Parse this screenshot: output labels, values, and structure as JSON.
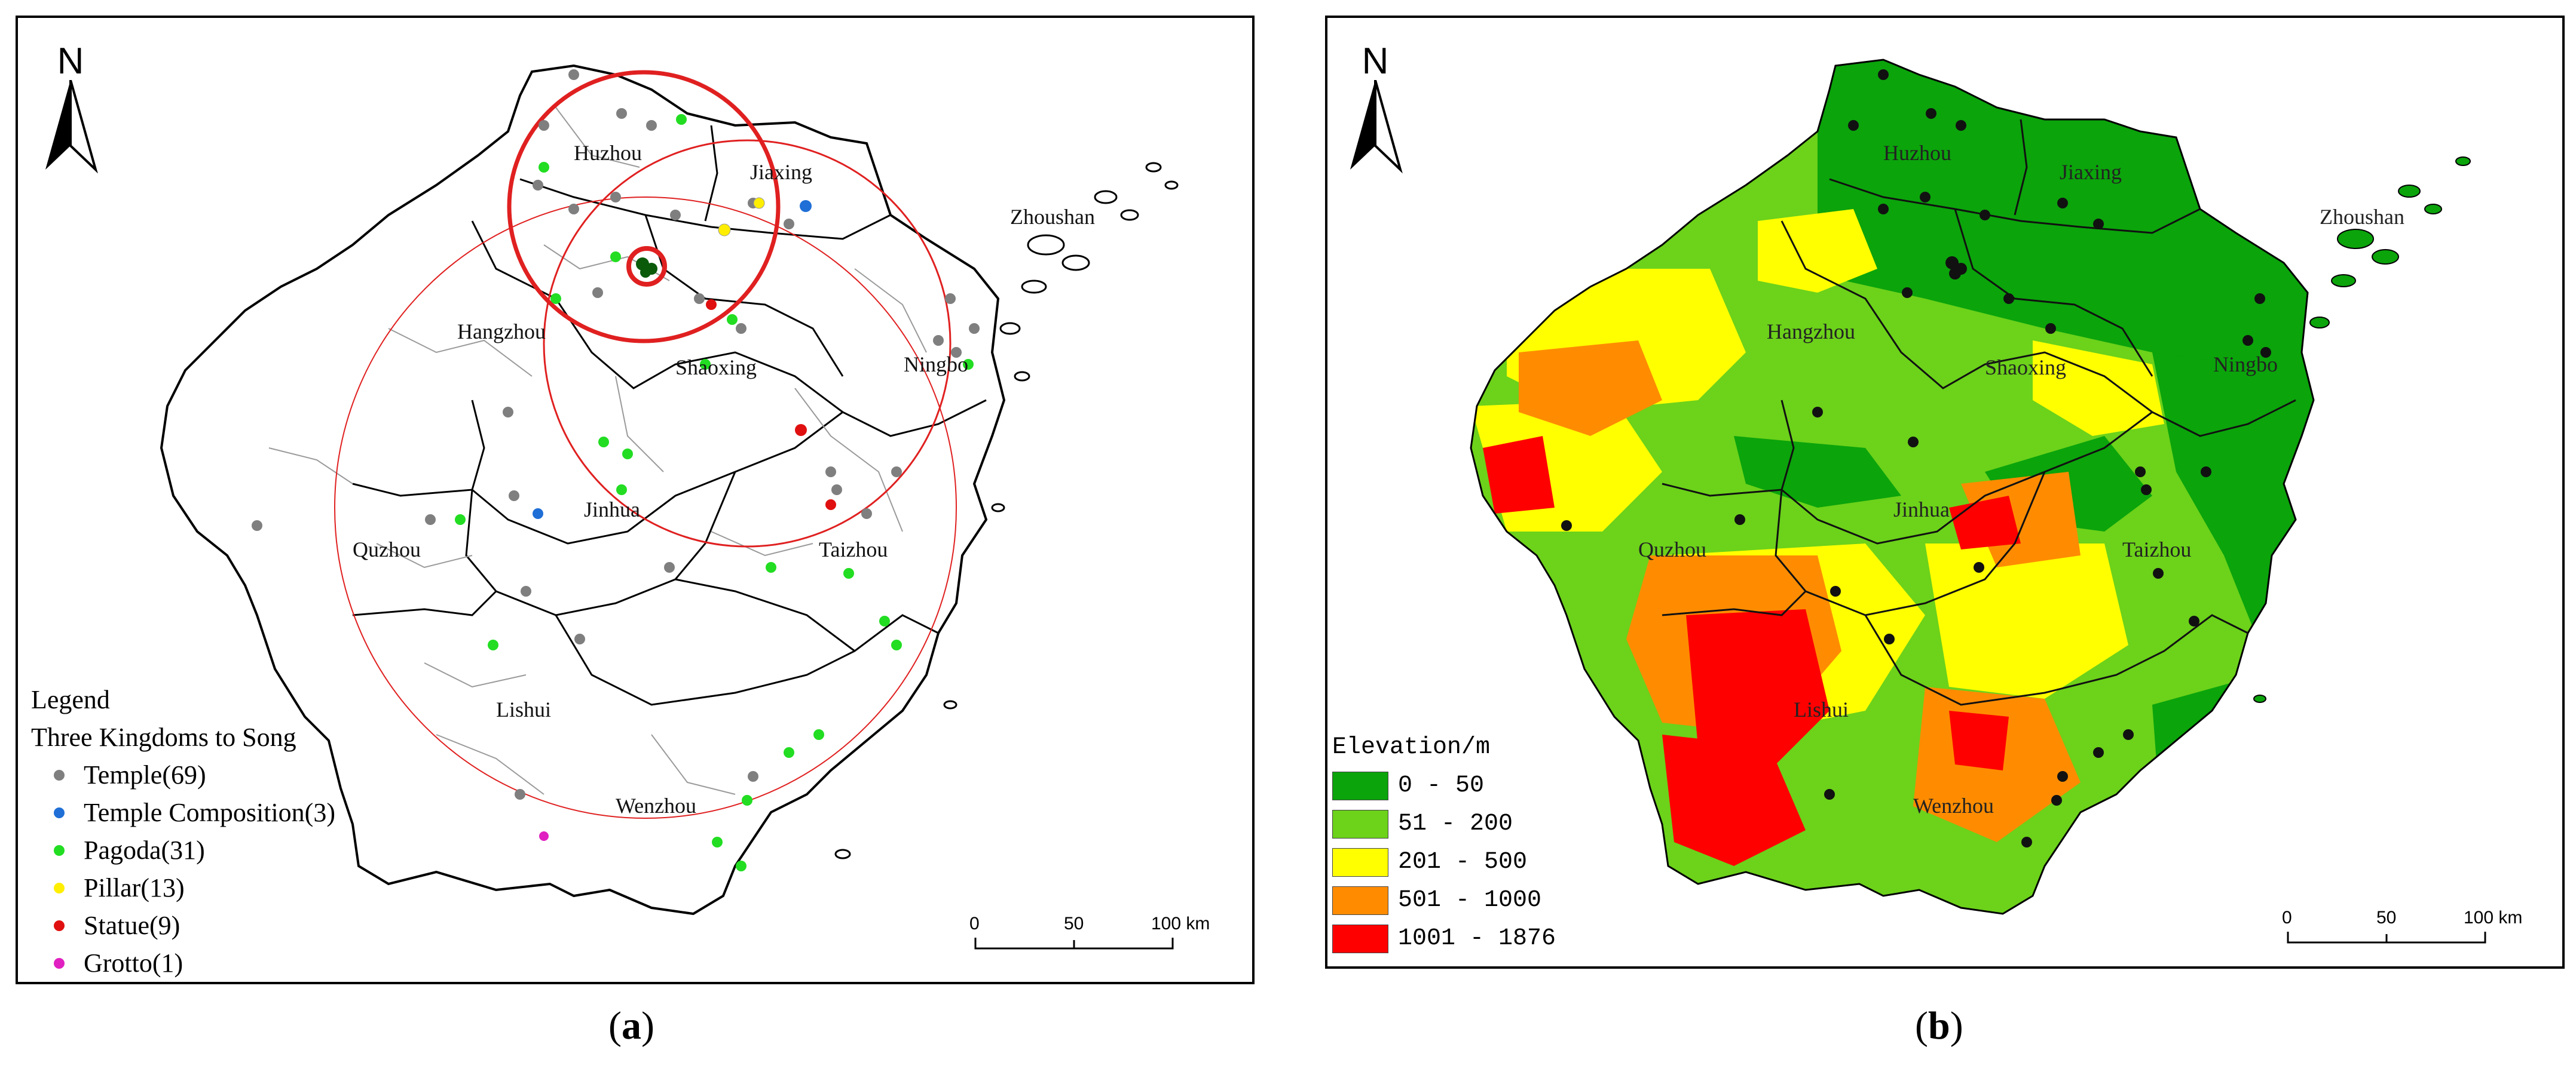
{
  "panel_a": {
    "caption_open": "(",
    "caption_letter": "a",
    "caption_close": ")",
    "north": "N",
    "cities": [
      "Huzhou",
      "Jiaxing",
      "Zhoushan",
      "Hangzhou",
      "Shaoxing",
      "Ningbo",
      "Jinhua",
      "Quzhou",
      "Taizhou",
      "Lishui",
      "Wenzhou"
    ],
    "legend_title": "Legend",
    "legend_subtitle": "Three Kingdoms to Song",
    "legend_items": [
      {
        "label": "Temple(69)",
        "color": "#7f7f7f"
      },
      {
        "label": "Temple Composition(3)",
        "color": "#1f6fd6"
      },
      {
        "label": "Pagoda(31)",
        "color": "#22dd22"
      },
      {
        "label": "Pillar(13)",
        "color": "#ffee00"
      },
      {
        "label": "Statue(9)",
        "color": "#e01010"
      },
      {
        "label": "Grotto(1)",
        "color": "#e020c0"
      }
    ],
    "scale_labels": [
      "0",
      "50",
      "100 km"
    ]
  },
  "panel_b": {
    "caption_open": "(",
    "caption_letter": "b",
    "caption_close": ")",
    "north": "N",
    "cities": [
      "Huzhou",
      "Jiaxing",
      "Zhoushan",
      "Hangzhou",
      "Shaoxing",
      "Ningbo",
      "Jinhua",
      "Quzhou",
      "Taizhou",
      "Lishui",
      "Wenzhou"
    ],
    "legend_title": "Elevation/m",
    "legend_items": [
      {
        "label": "0 - 50",
        "color": "#0ba40b"
      },
      {
        "label": "51 - 200",
        "color": "#6cd21a"
      },
      {
        "label": "201 - 500",
        "color": "#ffff00"
      },
      {
        "label": "501 - 1000",
        "color": "#ff8c00"
      },
      {
        "label": "1001 - 1876",
        "color": "#ff0000"
      }
    ],
    "scale_labels": [
      "0",
      "50",
      "100 km"
    ]
  },
  "colors": {
    "highlight_circle": "#e02020",
    "site_dot_b": "#111111",
    "boundary": "#000000",
    "county_line": "#9a9a9a"
  }
}
